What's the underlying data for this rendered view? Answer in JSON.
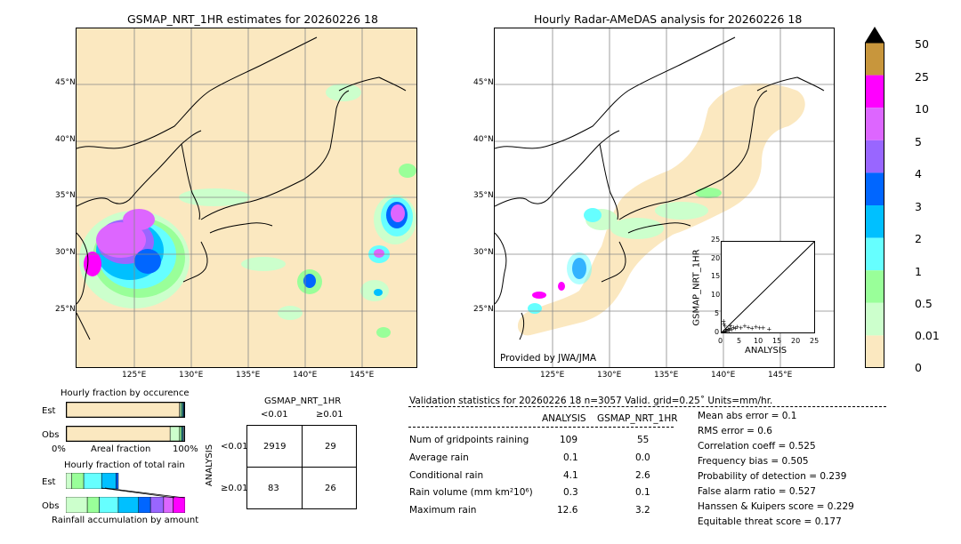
{
  "left_map": {
    "title": "GSMAP_NRT_1HR estimates for 20260226 18",
    "lat_labels": [
      "45°N",
      "40°N",
      "35°N",
      "30°N",
      "25°N"
    ],
    "lon_labels": [
      "125°E",
      "130°E",
      "135°E",
      "140°E",
      "145°E"
    ]
  },
  "right_map": {
    "title": "Hourly Radar-AMeDAS analysis for 20260226 18",
    "lat_labels": [
      "45°N",
      "40°N",
      "35°N",
      "30°N",
      "25°N"
    ],
    "lon_labels": [
      "125°E",
      "130°E",
      "135°E",
      "140°E",
      "145°E"
    ],
    "credit": "Provided by JWA/JMA"
  },
  "scatter": {
    "xlabel": "ANALYSIS",
    "ylabel": "GSMAP_NRT_1HR",
    "ticks": [
      "0",
      "5",
      "10",
      "15",
      "20",
      "25"
    ]
  },
  "colorbar": {
    "labels": [
      "50",
      "25",
      "10",
      "5",
      "4",
      "3",
      "2",
      "1",
      "0.5",
      "0.01",
      "0"
    ],
    "colors": [
      "#c8963c",
      "#ff00ff",
      "#dd66ff",
      "#9966ff",
      "#0066ff",
      "#00c0ff",
      "#66ffff",
      "#99ff99",
      "#ccffcc",
      "#fbe8c0"
    ]
  },
  "occurrence": {
    "title": "Hourly fraction by occurence",
    "row_est": "Est",
    "row_obs": "Obs",
    "axis_left": "0%",
    "axis_mid": "Areal fraction",
    "axis_right": "100%"
  },
  "amount": {
    "title": "Hourly fraction of total rain",
    "row_est": "Est",
    "row_obs": "Obs",
    "axis_label": "Rainfall accumulation by amount"
  },
  "contingency": {
    "col_title": "GSMAP_NRT_1HR",
    "col_lt": "<0.01",
    "col_ge": "≥0.01",
    "row_title": "ANALYSIS",
    "row_lt": "<0.01",
    "row_ge": "≥0.01",
    "cells": [
      "2919",
      "29",
      "83",
      "26"
    ]
  },
  "validation": {
    "header": "Validation statistics for 20260226 18  n=3057 Valid. grid=0.25˚ Units=mm/hr.",
    "col_analysis": "ANALYSIS",
    "col_gsmap": "GSMAP_NRT_1HR",
    "rows": [
      {
        "label": "Num of gridpoints raining",
        "analysis": "109",
        "gsmap": "55"
      },
      {
        "label": "Average rain",
        "analysis": "0.1",
        "gsmap": "0.0"
      },
      {
        "label": "Conditional rain",
        "analysis": "4.1",
        "gsmap": "2.6"
      },
      {
        "label": "Rain volume (mm km²10⁶)",
        "analysis": "0.3",
        "gsmap": "0.1"
      },
      {
        "label": "Maximum rain",
        "analysis": "12.6",
        "gsmap": "3.2"
      }
    ],
    "scores": [
      "Mean abs error =    0.1",
      "RMS error =    0.6",
      "Correlation coeff =  0.525",
      "Frequency bias =  0.505",
      "Probability of detection =  0.239",
      "False alarm ratio =  0.527",
      "Hanssen & Kuipers score =  0.229",
      "Equitable threat score =  0.177"
    ]
  },
  "chart_data": [
    {
      "type": "heatmap",
      "title": "GSMAP_NRT_1HR estimates for 20260226 18",
      "xlabel": "",
      "ylabel": "",
      "x_ticks": [
        "125°E",
        "130°E",
        "135°E",
        "140°E",
        "145°E"
      ],
      "y_ticks": [
        "45°N",
        "40°N",
        "35°N",
        "30°N",
        "25°N"
      ],
      "color_scale": [
        "0",
        "0.01",
        "0.5",
        "1",
        "2",
        "3",
        "4",
        "5",
        "10",
        "25",
        "50"
      ]
    },
    {
      "type": "heatmap",
      "title": "Hourly Radar-AMeDAS analysis for 20260226 18",
      "xlabel": "",
      "ylabel": "",
      "x_ticks": [
        "125°E",
        "130°E",
        "135°E",
        "140°E",
        "145°E"
      ],
      "y_ticks": [
        "45°N",
        "40°N",
        "35°N",
        "30°N",
        "25°N"
      ],
      "color_scale": [
        "0",
        "0.01",
        "0.5",
        "1",
        "2",
        "3",
        "4",
        "5",
        "10",
        "25",
        "50"
      ]
    },
    {
      "type": "scatter",
      "xlabel": "ANALYSIS",
      "ylabel": "GSMAP_NRT_1HR",
      "xlim": [
        0,
        25
      ],
      "ylim": [
        0,
        25
      ],
      "points": [
        [
          0.2,
          0.1
        ],
        [
          0.5,
          0.3
        ],
        [
          0.8,
          0.5
        ],
        [
          1,
          0.8
        ],
        [
          1.2,
          0.4
        ],
        [
          1.5,
          1
        ],
        [
          2,
          1.2
        ],
        [
          2.5,
          0.8
        ],
        [
          3,
          1.5
        ],
        [
          3.5,
          1.2
        ],
        [
          4,
          1.6
        ],
        [
          5,
          1.4
        ],
        [
          6,
          1.8
        ],
        [
          7,
          1.5
        ],
        [
          8,
          1.2
        ],
        [
          9,
          1.6
        ],
        [
          10,
          1.4
        ],
        [
          11,
          1.3
        ],
        [
          12.6,
          1.0
        ],
        [
          0.3,
          3.2
        ],
        [
          0.6,
          1.8
        ],
        [
          1.8,
          0.6
        ],
        [
          2.2,
          2.0
        ],
        [
          0.4,
          2.5
        ]
      ]
    },
    {
      "type": "bar",
      "title": "Hourly fraction by occurence",
      "categories": [
        "Est",
        "Obs"
      ],
      "series": [
        {
          "name": "0",
          "values": [
            0.96,
            0.88
          ]
        },
        {
          "name": "0.01",
          "values": [
            0.01,
            0.08
          ]
        },
        {
          "name": "0.5",
          "values": [
            0.01,
            0.015
          ]
        },
        {
          "name": "1",
          "values": [
            0.01,
            0.01
          ]
        },
        {
          "name": "2",
          "values": [
            0.005,
            0.005
          ]
        },
        {
          "name": "3",
          "values": [
            0.005,
            0.005
          ]
        }
      ]
    },
    {
      "type": "bar",
      "title": "Hourly fraction of total rain",
      "categories": [
        "Est",
        "Obs"
      ],
      "series": [
        {
          "name": "0.01",
          "values": [
            0.05,
            0.18
          ]
        },
        {
          "name": "0.5",
          "values": [
            0.1,
            0.1
          ]
        },
        {
          "name": "1",
          "values": [
            0.15,
            0.16
          ]
        },
        {
          "name": "2",
          "values": [
            0.12,
            0.17
          ]
        },
        {
          "name": "3",
          "values": [
            0.02,
            0.1
          ]
        },
        {
          "name": "4",
          "values": [
            0.0,
            0.11
          ]
        },
        {
          "name": "5",
          "values": [
            0.0,
            0.08
          ]
        },
        {
          "name": "10",
          "values": [
            0.0,
            0.1
          ]
        }
      ]
    }
  ]
}
